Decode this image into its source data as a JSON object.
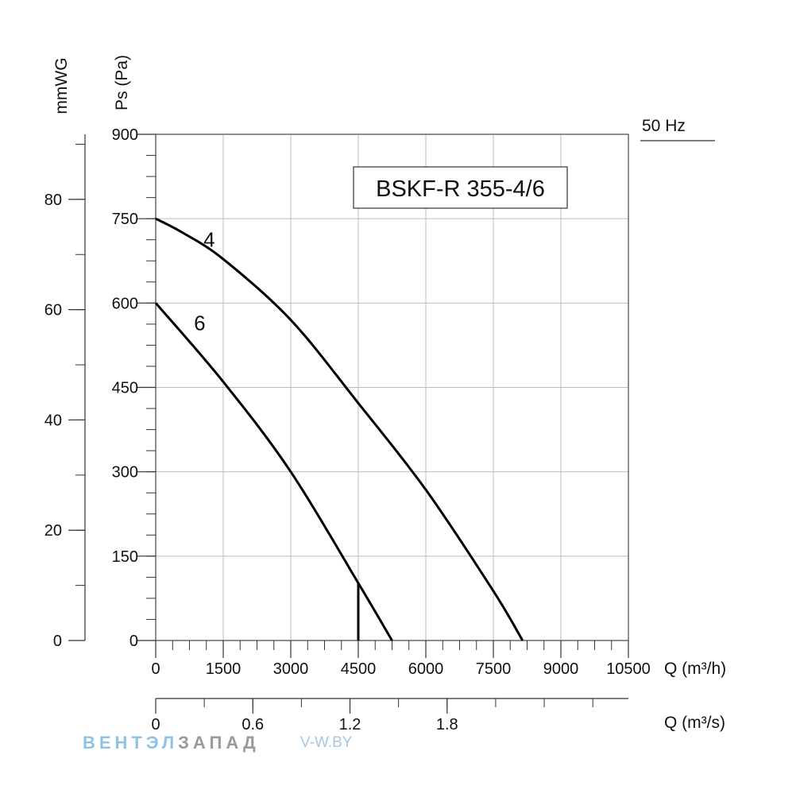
{
  "chart_data": {
    "type": "line",
    "title": "BSKF-R 355-4/6",
    "frequency_label": "50 Hz",
    "x": {
      "label": "Q (m³/h)",
      "range": [
        0,
        10500
      ],
      "ticks": [
        "0",
        "1500",
        "3000",
        "4500",
        "6000",
        "7500",
        "9000",
        "10500"
      ],
      "minor_step": 375
    },
    "x2": {
      "label": "Q (m³/s)",
      "range": [
        0,
        2.92
      ],
      "ticks": [
        {
          "value": 0,
          "label": "0"
        },
        {
          "value": 0.6,
          "label": "0.6"
        },
        {
          "value": 1.2,
          "label": "1.2"
        },
        {
          "value": 1.8,
          "label": "1.8"
        }
      ],
      "minor_step": 0.3
    },
    "y": {
      "label": "Ps (Pa)",
      "range": [
        0,
        900
      ],
      "ticks": [
        "0",
        "150",
        "300",
        "450",
        "600",
        "750",
        "900"
      ],
      "minor_step": 37.5
    },
    "y2": {
      "label": "mmWG",
      "range": [
        0,
        91.8
      ],
      "ticks": [
        {
          "value": 0,
          "label": "0"
        },
        {
          "value": 20,
          "label": "20"
        },
        {
          "value": 40,
          "label": "40"
        },
        {
          "value": 60,
          "label": "60"
        },
        {
          "value": 80,
          "label": "80"
        }
      ],
      "minor_step": 10
    },
    "grid": true,
    "series": [
      {
        "name": "4",
        "x": [
          0,
          600,
          1500,
          3000,
          4500,
          6000,
          7500,
          8150
        ],
        "values": [
          750,
          725,
          678,
          570,
          422,
          268,
          88,
          0
        ]
      },
      {
        "name": "6",
        "x": [
          0,
          1500,
          3000,
          4500,
          5250
        ],
        "values": [
          600,
          460,
          300,
          102,
          0
        ]
      }
    ],
    "limit_line": {
      "x": 4500,
      "values": [
        0,
        102
      ]
    }
  },
  "watermark": {
    "part1": "ВЕНТЭЛ",
    "part2": "ЗАПАД",
    "url_prefix": "V-",
    "url_rest": "W.BY"
  }
}
